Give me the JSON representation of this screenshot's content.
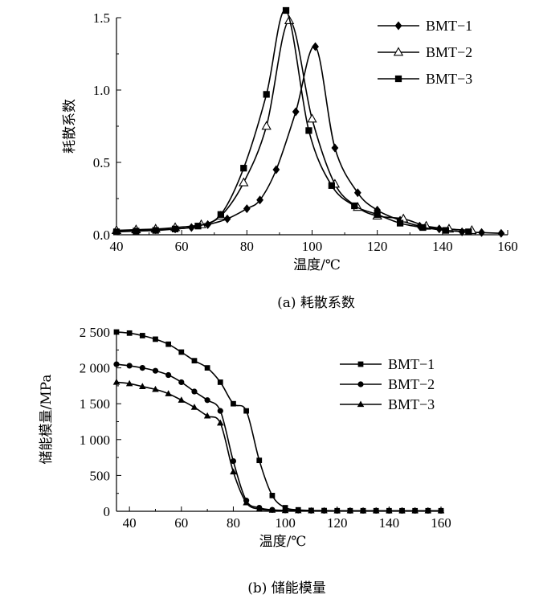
{
  "chart_data": [
    {
      "type": "line",
      "xlabel": "温度/℃",
      "ylabel": "耗散系数",
      "caption": "(a) 耗散系数",
      "xlim": [
        40,
        160
      ],
      "ylim": [
        0,
        1.5
      ],
      "xticks": [
        "40",
        "60",
        "80",
        "100",
        "120",
        "140",
        "160"
      ],
      "yticks": [
        "0.0",
        "0.5",
        "1.0",
        "1.5"
      ],
      "series": [
        {
          "name": "BMT−1",
          "marker": "diamond",
          "points": [
            [
              40,
              0.03
            ],
            [
              46,
              0.03
            ],
            [
              52,
              0.035
            ],
            [
              58,
              0.04
            ],
            [
              63,
              0.05
            ],
            [
              68,
              0.07
            ],
            [
              74,
              0.11
            ],
            [
              80,
              0.18
            ],
            [
              84,
              0.24
            ],
            [
              89,
              0.45
            ],
            [
              95,
              0.85
            ],
            [
              101,
              1.3
            ],
            [
              107,
              0.6
            ],
            [
              114,
              0.29
            ],
            [
              120,
              0.17
            ],
            [
              127,
              0.1
            ],
            [
              133,
              0.06
            ],
            [
              139,
              0.04
            ],
            [
              146,
              0.02
            ],
            [
              152,
              0.015
            ],
            [
              158,
              0.01
            ]
          ]
        },
        {
          "name": "BMT−2",
          "marker": "triangle-open",
          "points": [
            [
              40,
              0.03
            ],
            [
              46,
              0.035
            ],
            [
              52,
              0.04
            ],
            [
              58,
              0.05
            ],
            [
              66,
              0.07
            ],
            [
              72,
              0.13
            ],
            [
              79,
              0.36
            ],
            [
              86,
              0.75
            ],
            [
              93,
              1.48
            ],
            [
              100,
              0.8
            ],
            [
              107,
              0.35
            ],
            [
              114,
              0.19
            ],
            [
              120,
              0.13
            ],
            [
              128,
              0.11
            ],
            [
              135,
              0.06
            ],
            [
              142,
              0.04
            ],
            [
              149,
              0.03
            ]
          ]
        },
        {
          "name": "BMT−3",
          "marker": "square",
          "points": [
            [
              40,
              0.02
            ],
            [
              46,
              0.025
            ],
            [
              52,
              0.03
            ],
            [
              58,
              0.04
            ],
            [
              65,
              0.06
            ],
            [
              72,
              0.14
            ],
            [
              79,
              0.46
            ],
            [
              86,
              0.97
            ],
            [
              92,
              1.55
            ],
            [
              99,
              0.72
            ],
            [
              106,
              0.34
            ],
            [
              113,
              0.2
            ],
            [
              120,
              0.14
            ],
            [
              127,
              0.08
            ],
            [
              134,
              0.05
            ],
            [
              141,
              0.03
            ],
            [
              148,
              0.02
            ]
          ]
        }
      ]
    },
    {
      "type": "line",
      "xlabel": "温度/℃",
      "ylabel": "储能模量/MPa",
      "caption": "(b) 储能模量",
      "xlim": [
        35,
        160
      ],
      "ylim": [
        0,
        2500
      ],
      "xticks": [
        "40",
        "60",
        "80",
        "100",
        "120",
        "140",
        "160"
      ],
      "yticks": [
        "0",
        "500",
        "1 000",
        "1 500",
        "2 000",
        "2 500"
      ],
      "series": [
        {
          "name": "BMT−1",
          "marker": "square",
          "points": [
            [
              35,
              2500
            ],
            [
              40,
              2485
            ],
            [
              45,
              2450
            ],
            [
              50,
              2400
            ],
            [
              55,
              2330
            ],
            [
              60,
              2220
            ],
            [
              65,
              2100
            ],
            [
              70,
              2000
            ],
            [
              75,
              1800
            ],
            [
              80,
              1500
            ],
            [
              85,
              1400
            ],
            [
              90,
              710
            ],
            [
              95,
              220
            ],
            [
              100,
              50
            ],
            [
              105,
              20
            ],
            [
              110,
              12
            ],
            [
              115,
              10
            ],
            [
              120,
              8
            ],
            [
              125,
              8
            ],
            [
              130,
              8
            ],
            [
              135,
              8
            ],
            [
              140,
              8
            ],
            [
              145,
              8
            ],
            [
              150,
              8
            ],
            [
              155,
              8
            ],
            [
              160,
              8
            ]
          ]
        },
        {
          "name": "BMT−2",
          "marker": "circle",
          "points": [
            [
              35,
              2050
            ],
            [
              40,
              2030
            ],
            [
              45,
              2000
            ],
            [
              50,
              1960
            ],
            [
              55,
              1900
            ],
            [
              60,
              1800
            ],
            [
              65,
              1670
            ],
            [
              70,
              1550
            ],
            [
              75,
              1400
            ],
            [
              80,
              700
            ],
            [
              85,
              150
            ],
            [
              90,
              50
            ],
            [
              95,
              20
            ],
            [
              100,
              12
            ],
            [
              105,
              10
            ],
            [
              110,
              8
            ],
            [
              115,
              8
            ],
            [
              120,
              8
            ],
            [
              125,
              8
            ],
            [
              130,
              8
            ],
            [
              135,
              8
            ],
            [
              140,
              8
            ],
            [
              145,
              8
            ],
            [
              150,
              8
            ],
            [
              155,
              8
            ],
            [
              160,
              8
            ]
          ]
        },
        {
          "name": "BMT−3",
          "marker": "triangle",
          "points": [
            [
              35,
              1800
            ],
            [
              40,
              1780
            ],
            [
              45,
              1740
            ],
            [
              50,
              1700
            ],
            [
              55,
              1640
            ],
            [
              60,
              1550
            ],
            [
              65,
              1450
            ],
            [
              70,
              1330
            ],
            [
              75,
              1230
            ],
            [
              80,
              550
            ],
            [
              85,
              120
            ],
            [
              90,
              30
            ],
            [
              95,
              15
            ],
            [
              100,
              10
            ],
            [
              105,
              8
            ],
            [
              110,
              8
            ],
            [
              115,
              8
            ],
            [
              120,
              8
            ],
            [
              125,
              8
            ],
            [
              130,
              8
            ],
            [
              135,
              8
            ],
            [
              140,
              8
            ],
            [
              145,
              8
            ],
            [
              150,
              8
            ],
            [
              155,
              8
            ],
            [
              160,
              8
            ]
          ]
        }
      ]
    }
  ]
}
